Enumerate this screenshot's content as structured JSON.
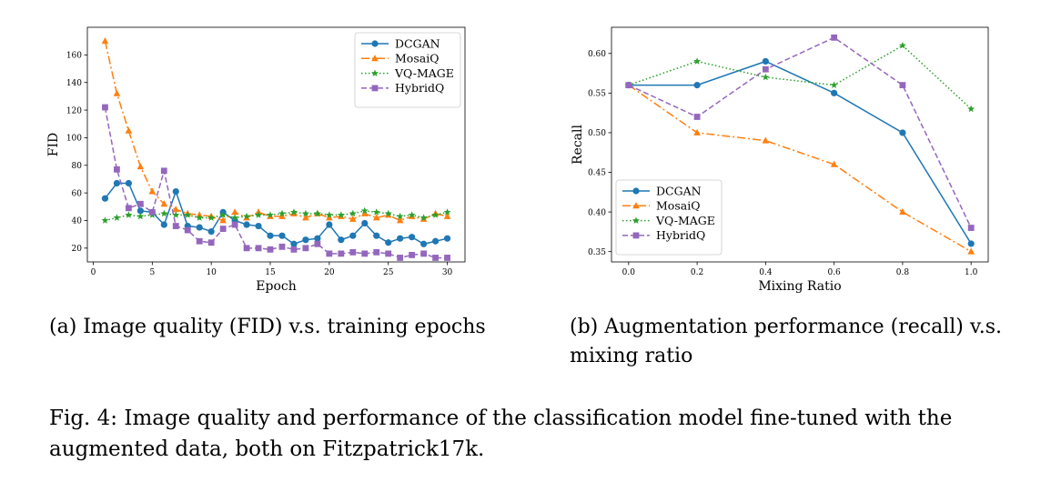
{
  "chart_data": [
    {
      "type": "line",
      "title": "",
      "xlabel": "Epoch",
      "ylabel": "FID",
      "xlim": [
        -0.5,
        31.5
      ],
      "ylim": [
        10,
        180
      ],
      "xticks": [
        0,
        5,
        10,
        15,
        20,
        25,
        30
      ],
      "yticks": [
        20,
        40,
        60,
        80,
        100,
        120,
        140,
        160
      ],
      "legend": "top-right",
      "grid": false,
      "x": [
        1,
        2,
        3,
        4,
        5,
        6,
        7,
        8,
        9,
        10,
        11,
        12,
        13,
        14,
        15,
        16,
        17,
        18,
        19,
        20,
        21,
        22,
        23,
        24,
        25,
        26,
        27,
        28,
        29,
        30
      ],
      "series": [
        {
          "name": "DCGAN",
          "color": "#1f77b4",
          "marker": "circle",
          "dash": "",
          "values": [
            56,
            67,
            67,
            47,
            46,
            37,
            61,
            36,
            35,
            32,
            46,
            40,
            37,
            36,
            29,
            29,
            23,
            26,
            27,
            37,
            26,
            29,
            38,
            29,
            24,
            27,
            28,
            23,
            25,
            27
          ]
        },
        {
          "name": "MosaiQ",
          "color": "#ff7f0e",
          "marker": "triangle",
          "dash": "9,3,2,3",
          "values": [
            170,
            132,
            105,
            79,
            61,
            52,
            48,
            45,
            44,
            43,
            40,
            46,
            42,
            46,
            43,
            43,
            45,
            42,
            45,
            42,
            43,
            41,
            45,
            42,
            44,
            40,
            43,
            41,
            45,
            43
          ]
        },
        {
          "name": "VQ-MAGE",
          "color": "#2ca02c",
          "marker": "star",
          "dash": "1.5,2.5",
          "values": [
            40,
            42,
            44,
            43,
            44,
            45,
            44,
            44,
            42,
            42,
            44,
            42,
            43,
            44,
            44,
            45,
            46,
            45,
            45,
            44,
            44,
            45,
            47,
            46,
            45,
            43,
            44,
            42,
            44,
            46
          ]
        },
        {
          "name": "HybridQ",
          "color": "#9467bd",
          "marker": "square",
          "dash": "6,3",
          "values": [
            122,
            77,
            49,
            52,
            46,
            76,
            36,
            33,
            25,
            24,
            34,
            37,
            20,
            20,
            19,
            21,
            19,
            20,
            23,
            16,
            16,
            17,
            16,
            17,
            16,
            13,
            15,
            16,
            13,
            13
          ]
        }
      ]
    },
    {
      "type": "line",
      "title": "",
      "xlabel": "Mixing Ratio",
      "ylabel": "Recall",
      "xlim": [
        -0.05,
        1.05
      ],
      "ylim": [
        0.337,
        0.633
      ],
      "xticks": [
        "0.0",
        "0.2",
        "0.4",
        "0.6",
        "0.8",
        "1.0"
      ],
      "yticks": [
        "0.35",
        "0.40",
        "0.45",
        "0.50",
        "0.55",
        "0.60"
      ],
      "legend": "lower-left",
      "grid": false,
      "x": [
        0.0,
        0.2,
        0.4,
        0.6,
        0.8,
        1.0
      ],
      "series": [
        {
          "name": "DCGAN",
          "color": "#1f77b4",
          "marker": "circle",
          "dash": "",
          "values": [
            0.56,
            0.56,
            0.59,
            0.55,
            0.5,
            0.36
          ]
        },
        {
          "name": "MosaiQ",
          "color": "#ff7f0e",
          "marker": "triangle",
          "dash": "9,3,2,3",
          "values": [
            0.56,
            0.5,
            0.49,
            0.46,
            0.4,
            0.35
          ]
        },
        {
          "name": "VQ-MAGE",
          "color": "#2ca02c",
          "marker": "star",
          "dash": "1.5,2.5",
          "values": [
            0.56,
            0.59,
            0.57,
            0.56,
            0.61,
            0.53
          ]
        },
        {
          "name": "HybridQ",
          "color": "#9467bd",
          "marker": "square",
          "dash": "6,3",
          "values": [
            0.56,
            0.52,
            0.58,
            0.62,
            0.56,
            0.38
          ]
        }
      ]
    }
  ],
  "captions": {
    "a": "(a) Image quality (FID) v.s. training epochs",
    "b": "(b) Augmentation performance (recall) v.s. mixing ratio",
    "main": "Fig. 4: Image quality and performance of the classification model fine-tuned with the augmented data, both on Fitzpatrick17k."
  }
}
